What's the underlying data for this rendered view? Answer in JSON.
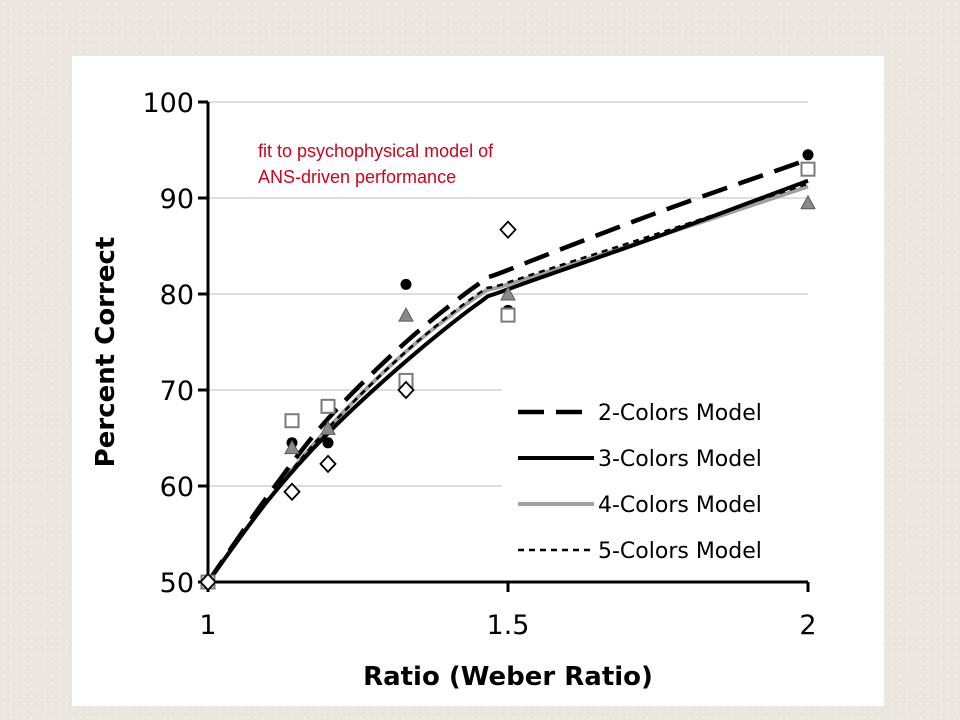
{
  "annotation": {
    "line1": "fit to psychophysical model of",
    "line2": "ANS-driven performance",
    "color": "#d0021b"
  },
  "chart_data": {
    "type": "line",
    "title": "",
    "xlabel": "Ratio (Weber Ratio)",
    "ylabel": "Percent Correct",
    "xlim": [
      1,
      2
    ],
    "ylim": [
      50,
      100
    ],
    "xticks": [
      1,
      1.5,
      2
    ],
    "xtick_labels": [
      "1",
      "1.5",
      "2"
    ],
    "yticks": [
      50,
      60,
      70,
      80,
      90,
      100
    ],
    "ytick_labels": [
      "50",
      "60",
      "70",
      "80",
      "90",
      "100"
    ],
    "grid": "horizontal",
    "legend_position": "bottom-right",
    "series": [
      {
        "name": "2-Colors Model",
        "style": "long-dash",
        "color": "#000000",
        "x": [
          1.0,
          1.1,
          1.2,
          1.33,
          1.45,
          1.5,
          1.75,
          2.0
        ],
        "y": [
          50,
          59,
          67,
          75,
          81,
          82.5,
          88.5,
          94
        ]
      },
      {
        "name": "3-Colors Model",
        "style": "solid",
        "color": "#000000",
        "x": [
          1.0,
          1.1,
          1.2,
          1.33,
          1.45,
          1.5,
          1.75,
          2.0
        ],
        "y": [
          50,
          58.5,
          65.5,
          73,
          79,
          80.5,
          86,
          91.8
        ]
      },
      {
        "name": "4-Colors Model",
        "style": "solid",
        "color": "#a0a0a0",
        "x": [
          1.0,
          1.1,
          1.2,
          1.33,
          1.45,
          1.5,
          1.75,
          2.0
        ],
        "y": [
          50,
          58.5,
          66,
          74,
          79.8,
          81,
          86,
          91.2
        ]
      },
      {
        "name": "5-Colors Model",
        "style": "short-dash",
        "color": "#000000",
        "x": [
          1.0,
          1.1,
          1.2,
          1.33,
          1.45,
          1.5,
          1.75,
          2.0
        ],
        "y": [
          50,
          58.5,
          66,
          74,
          80,
          81.2,
          86.3,
          91.5
        ]
      }
    ],
    "scatter_series": [
      {
        "marker": "circle-filled",
        "color": "#000000",
        "x": [
          1.0,
          1.14,
          1.2,
          1.33,
          1.5,
          2.0
        ],
        "y": [
          50,
          64.5,
          64.5,
          81,
          78.3,
          94.5
        ]
      },
      {
        "marker": "triangle-gray",
        "color": "#808080",
        "x": [
          1.0,
          1.14,
          1.2,
          1.33,
          1.5,
          2.0
        ],
        "y": [
          50,
          64,
          66,
          77.8,
          80,
          89.5
        ]
      },
      {
        "marker": "square-open",
        "color": "#808080",
        "x": [
          1.0,
          1.14,
          1.2,
          1.33,
          1.5,
          2.0
        ],
        "y": [
          50,
          66.8,
          68.3,
          71,
          77.8,
          93
        ]
      },
      {
        "marker": "diamond-open",
        "color": "#000000",
        "x": [
          1.0,
          1.14,
          1.2,
          1.33,
          1.5
        ],
        "y": [
          50,
          59.4,
          62.3,
          70,
          86.7
        ]
      }
    ]
  }
}
